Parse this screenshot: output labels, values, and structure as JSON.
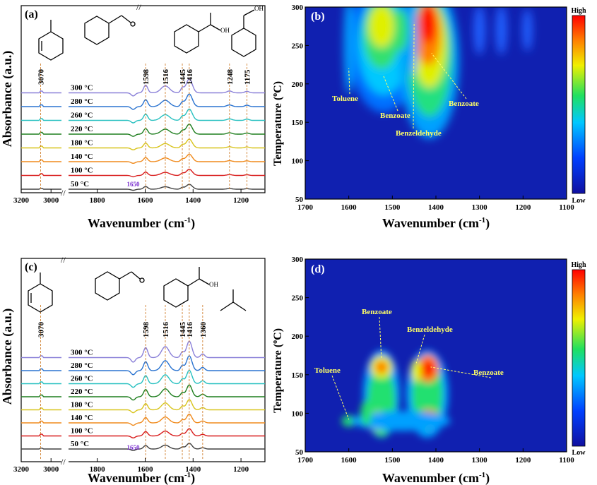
{
  "panels": {
    "a": {
      "label": "(a)"
    },
    "b": {
      "label": "(b)"
    },
    "c": {
      "label": "(c)"
    },
    "d": {
      "label": "(d)"
    }
  },
  "axes": {
    "absorbance": "Absorbance (a.u.)",
    "wavenumber": "Wavenumber (cm",
    "wavenumber_exp": "-1",
    "wavenumber_close": ")",
    "temperature": "Temperature (",
    "temperature_deg": "o",
    "temperature_unit": "C)"
  },
  "colorbar": {
    "high": "High",
    "low": "Low"
  },
  "chart_data": [
    {
      "panel": "a",
      "type": "line",
      "xlabel": "Wavenumber (cm-1)",
      "ylabel": "Absorbance (a.u.)",
      "xlim": [
        3200,
        1100
      ],
      "x_ticks": [
        "3200",
        "3000",
        "1800",
        "1600",
        "1400",
        "1200"
      ],
      "series_names": [
        "50 °C",
        "100 °C",
        "140 °C",
        "180 °C",
        "220 °C",
        "260 °C",
        "280 °C",
        "300 °C"
      ],
      "series_colors": [
        "#404040",
        "#d81b1b",
        "#f08a1c",
        "#d8c41c",
        "#1e7e1e",
        "#27c0c0",
        "#2a73d0",
        "#8a80d8"
      ],
      "peak_labels": [
        "3070",
        "1598",
        "1516",
        "1445",
        "1416",
        "1248",
        "1175"
      ],
      "extra_label": "1650"
    },
    {
      "panel": "b",
      "type": "heatmap",
      "xlabel": "Wavenumber (cm-1)",
      "ylabel": "Temperature (oC)",
      "xlim": [
        1700,
        1100
      ],
      "ylim": [
        50,
        300
      ],
      "x_ticks": [
        "1700",
        "1600",
        "1500",
        "1400",
        "1300",
        "1200",
        "1100"
      ],
      "y_ticks": [
        "50",
        "100",
        "150",
        "200",
        "250",
        "300"
      ],
      "annotations": [
        "Toluene",
        "Benzoate",
        "Benzeldehyde",
        "Benzoate"
      ]
    },
    {
      "panel": "c",
      "type": "line",
      "xlabel": "Wavenumber (cm-1)",
      "ylabel": "Absorbance (a.u.)",
      "xlim": [
        3200,
        1100
      ],
      "x_ticks": [
        "3200",
        "3000",
        "1800",
        "1600",
        "1400",
        "1200"
      ],
      "series_names": [
        "50 °C",
        "100 °C",
        "140 °C",
        "180 °C",
        "220 °C",
        "260 °C",
        "280 °C",
        "300 °C"
      ],
      "series_colors": [
        "#404040",
        "#d81b1b",
        "#f08a1c",
        "#d8c41c",
        "#1e7e1e",
        "#27c0c0",
        "#2a73d0",
        "#8a80d8"
      ],
      "peak_labels": [
        "3070",
        "1598",
        "1516",
        "1445",
        "1416",
        "1360"
      ],
      "extra_label": "1650"
    },
    {
      "panel": "d",
      "type": "heatmap",
      "xlabel": "Wavenumber (cm-1)",
      "ylabel": "Temperature (oC)",
      "xlim": [
        1700,
        1100
      ],
      "ylim": [
        50,
        300
      ],
      "x_ticks": [
        "1700",
        "1600",
        "1500",
        "1400",
        "1300",
        "1200",
        "1100"
      ],
      "y_ticks": [
        "50",
        "100",
        "150",
        "200",
        "250",
        "300"
      ],
      "annotations": [
        "Benzoate",
        "Benzeldehyde",
        "Toluene",
        "Benzoate"
      ]
    }
  ],
  "molecule_labels": {
    "oh1": "OH",
    "oh2": "OH",
    "oh3": "OH"
  }
}
